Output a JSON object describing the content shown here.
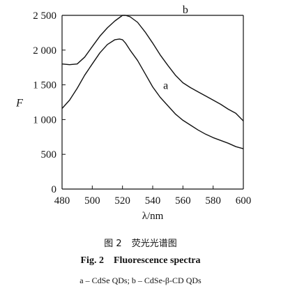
{
  "caption": {
    "cn_number": "图 2",
    "cn_title": "荧光光谱图",
    "en_number": "Fig. 2",
    "en_title": "Fluorescence spectra",
    "legend_text": "a – CdSe QDs; b – CdSe-β-CD QDs"
  },
  "chart_data": {
    "type": "line",
    "xlabel": "λ/nm",
    "ylabel": "F",
    "xlim": [
      480,
      600
    ],
    "ylim": [
      0,
      2500
    ],
    "xticks": [
      480,
      500,
      520,
      540,
      560,
      580,
      600
    ],
    "yticks": [
      0,
      500,
      1000,
      1500,
      2000,
      2500
    ],
    "ytick_labels": [
      "0",
      "500",
      "1 000",
      "1 500",
      "2 000",
      "2 500"
    ],
    "grid": false,
    "line_color": "#111111",
    "series": [
      {
        "name": "a",
        "x": [
          480,
          485,
          490,
          495,
          500,
          505,
          510,
          515,
          518,
          520,
          522,
          525,
          530,
          535,
          540,
          545,
          550,
          555,
          560,
          565,
          570,
          575,
          580,
          585,
          590,
          595,
          600
        ],
        "values": [
          1160,
          1280,
          1450,
          1640,
          1800,
          1960,
          2080,
          2150,
          2160,
          2150,
          2100,
          2000,
          1850,
          1660,
          1470,
          1320,
          1200,
          1080,
          990,
          920,
          850,
          790,
          740,
          700,
          660,
          610,
          580
        ]
      },
      {
        "name": "b",
        "x": [
          480,
          485,
          490,
          495,
          500,
          505,
          510,
          515,
          520,
          522,
          525,
          530,
          535,
          540,
          545,
          550,
          555,
          560,
          565,
          570,
          575,
          580,
          585,
          590,
          595,
          600
        ],
        "values": [
          1800,
          1790,
          1800,
          1900,
          2050,
          2200,
          2320,
          2420,
          2500,
          2500,
          2480,
          2400,
          2260,
          2100,
          1930,
          1780,
          1640,
          1530,
          1460,
          1400,
          1340,
          1280,
          1220,
          1150,
          1090,
          980
        ]
      }
    ]
  }
}
